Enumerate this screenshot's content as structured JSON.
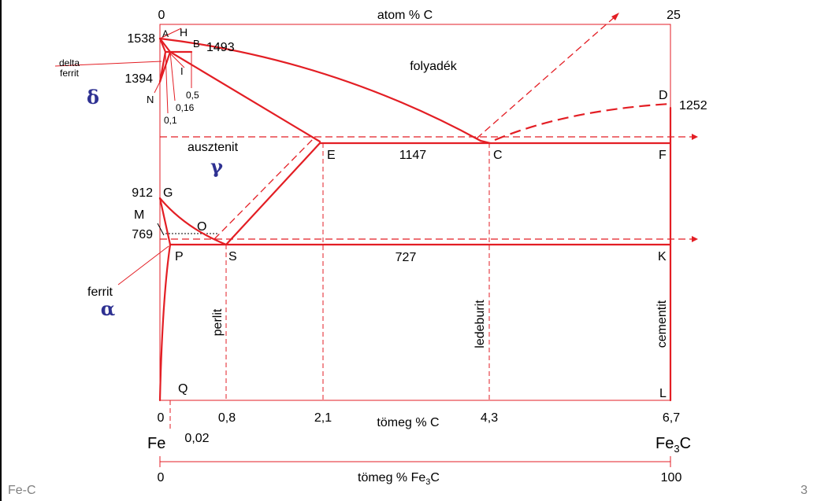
{
  "slide": {
    "footer_left": "Fe-C",
    "page_number": "3",
    "accent_color": "#e31e24",
    "greek_color": "#2e3192"
  },
  "axes": {
    "top_title": "atom % C",
    "top_min": "0",
    "top_max": "25",
    "bottom_title": "tömeg % C",
    "bottom_ticks": [
      "0",
      "0,02",
      "0,8",
      "2,1",
      "4,3",
      "6,7"
    ],
    "fe_label": "Fe",
    "fe3c_label_main": "Fe",
    "fe3c_label_sub": "3",
    "fe3c_label_end": "C",
    "scale2_title_main": "tömeg % Fe",
    "scale2_title_sub": "3",
    "scale2_title_end": "C",
    "scale2_min": "0",
    "scale2_max": "100"
  },
  "temperatures": {
    "t1538": "1538",
    "t1493": "1493",
    "t1394": "1394",
    "t1252": "1252",
    "t1147": "1147",
    "t912": "912",
    "t769": "769",
    "t727": "727"
  },
  "points": {
    "A": "A",
    "H": "H",
    "B": "B",
    "I": "I",
    "N": "N",
    "D": "D",
    "E": "E",
    "C": "C",
    "F": "F",
    "G": "G",
    "M": "M",
    "O": "O",
    "P": "P",
    "S": "S",
    "K": "K",
    "Q": "Q",
    "L": "L"
  },
  "small_values": {
    "v05": "0,5",
    "v016": "0,16",
    "v01": "0,1"
  },
  "phases": {
    "delta_line1": "delta",
    "delta_line2": "ferrit",
    "delta_symbol": "δ",
    "liquid": "folyadék",
    "austenite": "ausztenit",
    "gamma_symbol": "γ",
    "ferrite": "ferrit",
    "alpha_symbol": "α",
    "perlite": "perlit",
    "ledeburite": "ledeburit",
    "cementite": "cementit"
  }
}
